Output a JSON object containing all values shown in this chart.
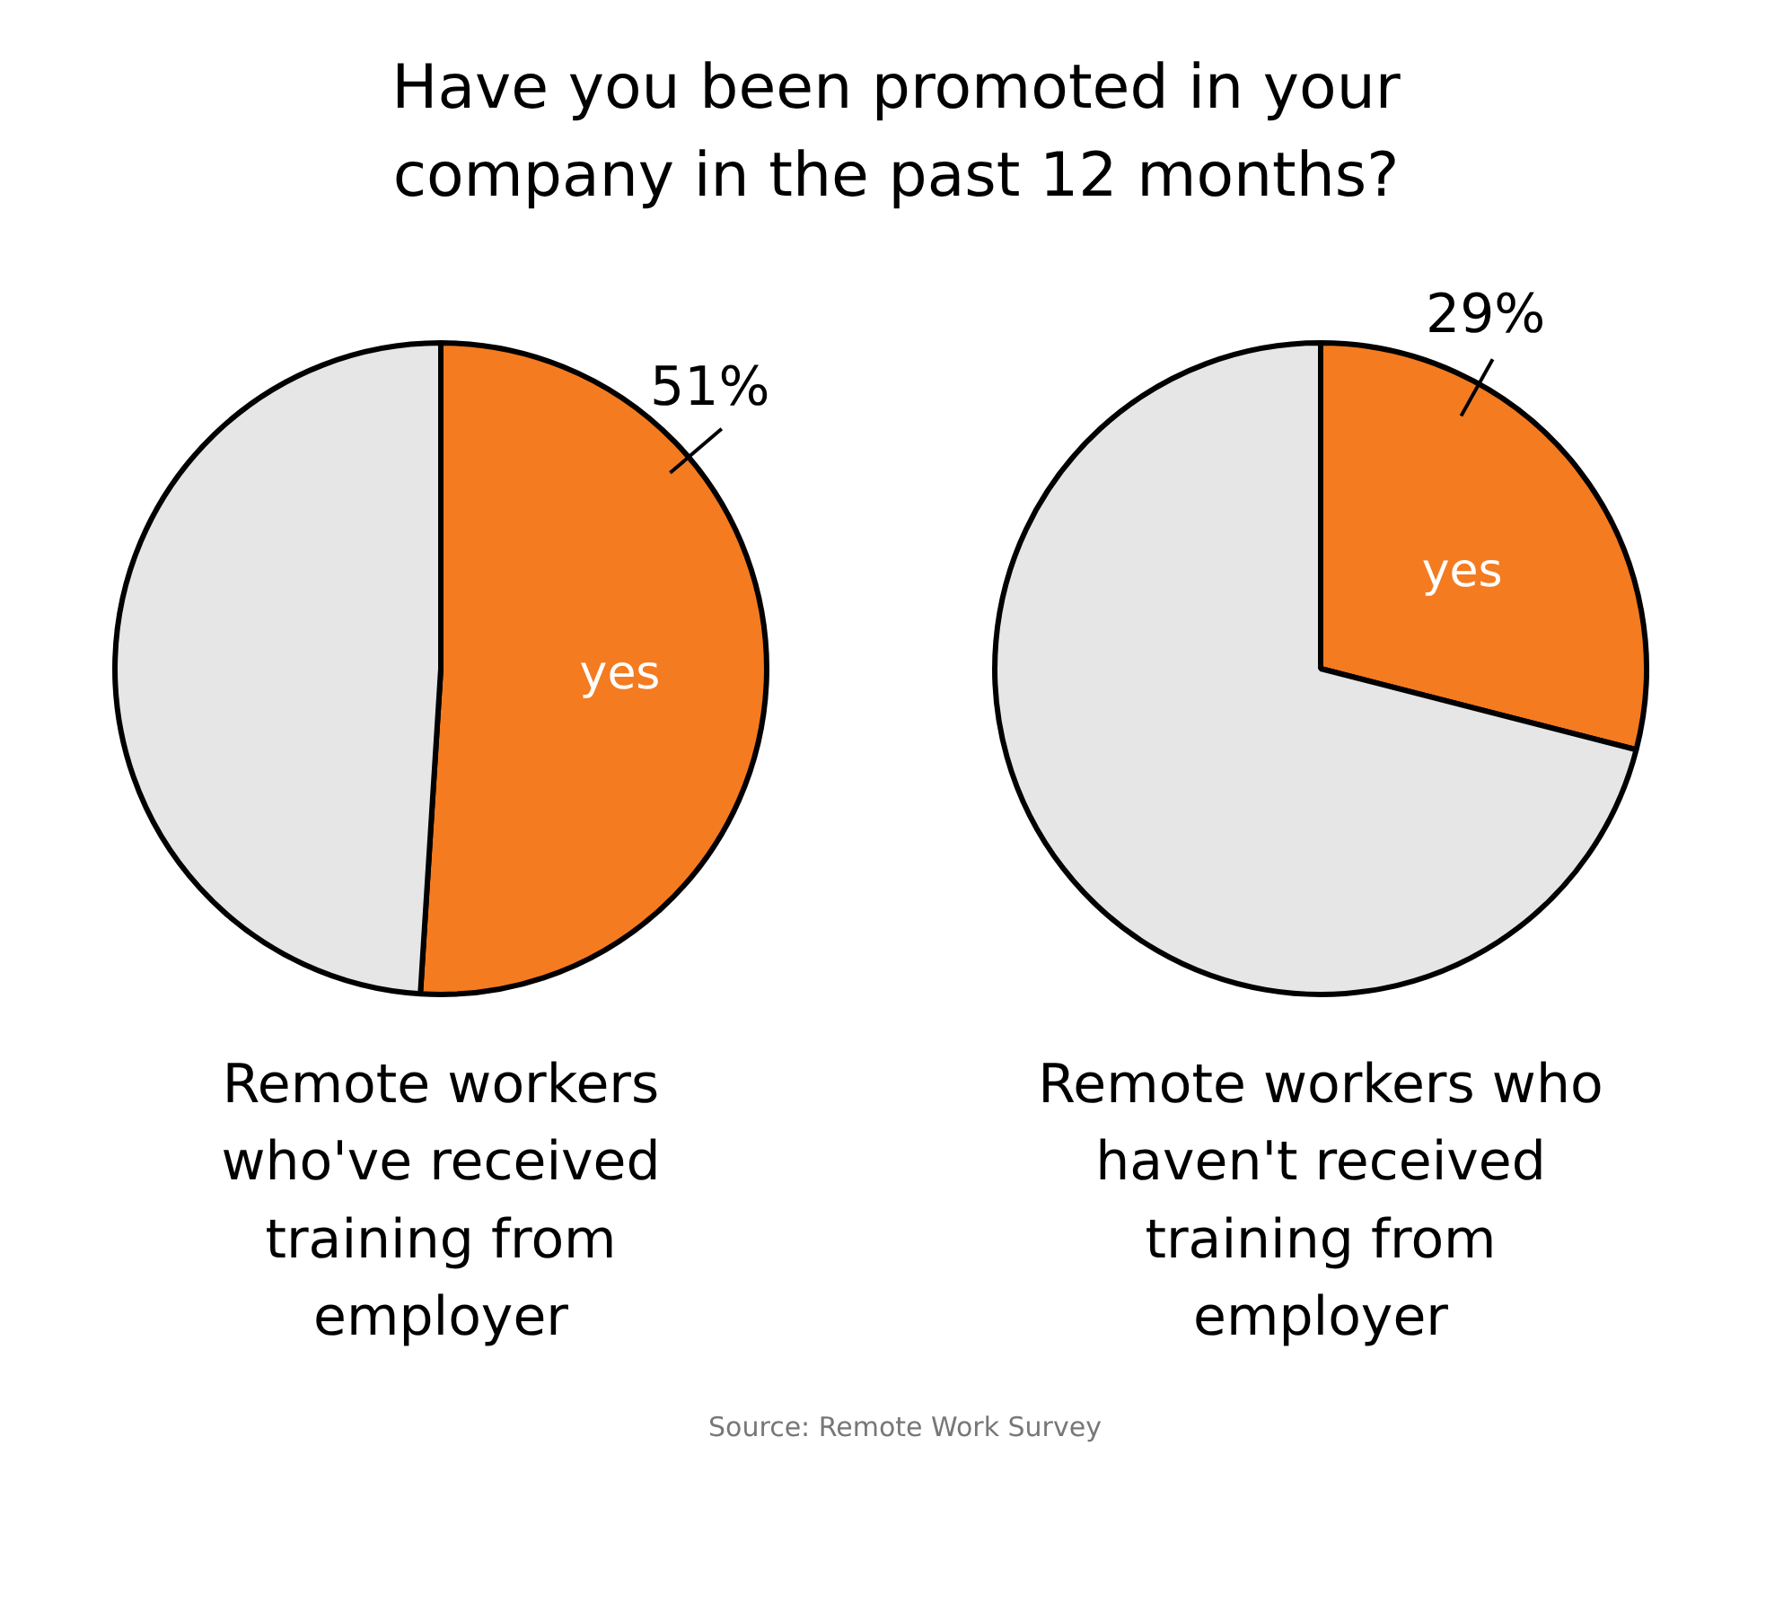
{
  "chart_data": [
    {
      "type": "pie",
      "title": "Have you been promoted in your company in the past 12 months?",
      "xlabel": "Remote workers who've received training from employer",
      "categories": [
        "yes",
        null
      ],
      "values": [
        51,
        49
      ],
      "colors": [
        "#f47b20",
        "#e6e6e6"
      ],
      "value_labels": [
        "51%",
        null
      ]
    },
    {
      "type": "pie",
      "xlabel": "Remote workers who haven't received training from employer",
      "categories": [
        "yes",
        null
      ],
      "values": [
        29,
        71
      ],
      "colors": [
        "#f47b20",
        "#e6e6e6"
      ],
      "value_labels": [
        "29%",
        null
      ],
      "annotations": [
        "Source: Remote Work Survey"
      ]
    }
  ]
}
